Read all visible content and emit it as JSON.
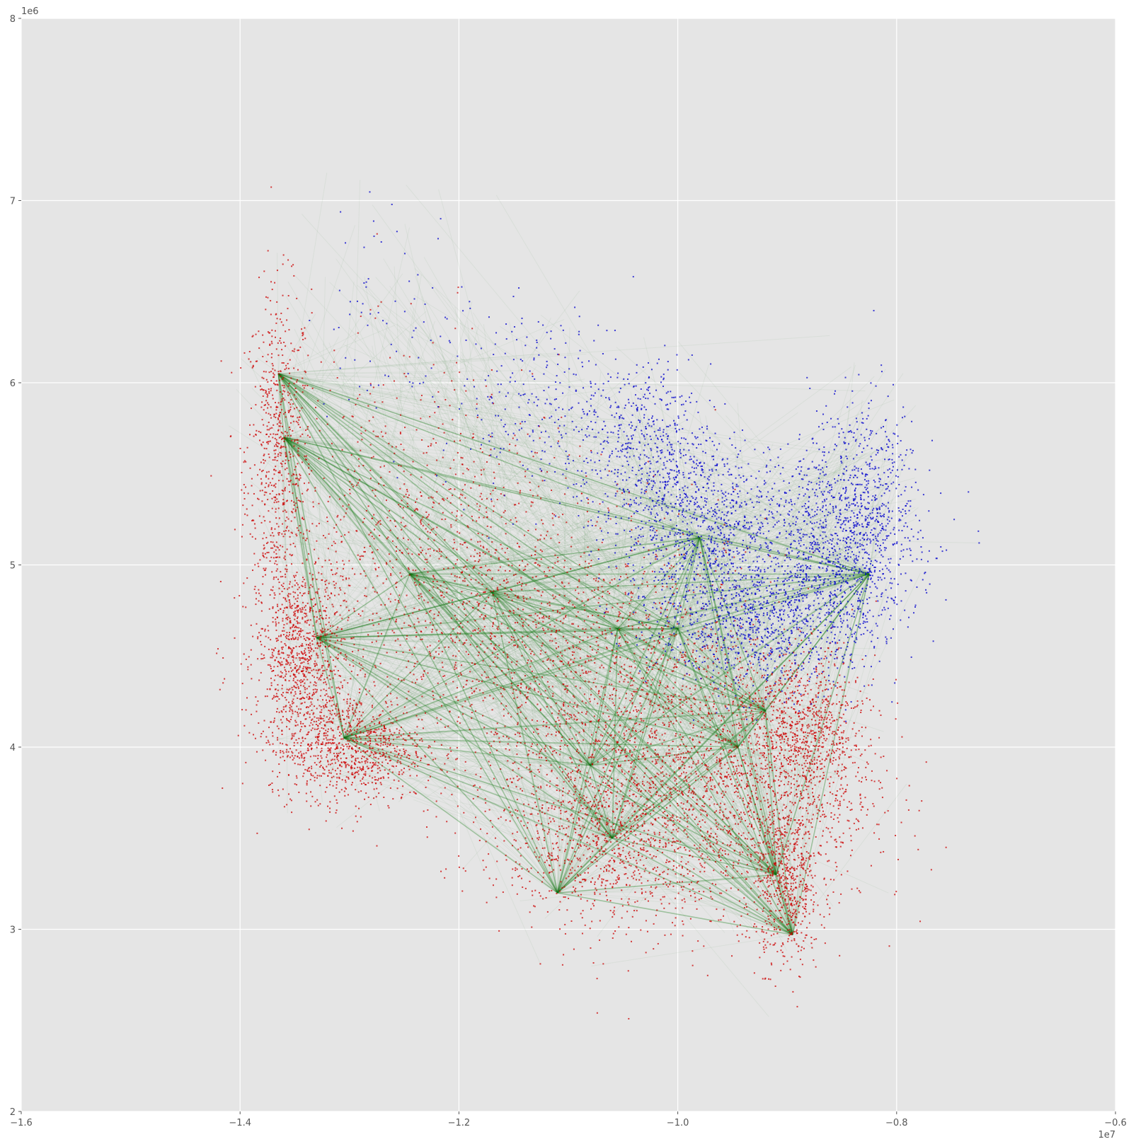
{
  "chart_data": {
    "type": "scatter",
    "title": "",
    "xlabel": "",
    "ylabel": "",
    "xlim": [
      -16000000,
      -6000000
    ],
    "ylim": [
      2000000,
      8000000
    ],
    "x_offset_text": "1e7",
    "y_offset_text": "1e6",
    "x_ticks": [
      -16000000,
      -14000000,
      -12000000,
      -10000000,
      -8000000,
      -6000000
    ],
    "x_tick_labels": [
      "−1.6",
      "−1.4",
      "−1.2",
      "−1.0",
      "−0.8",
      "−0.6"
    ],
    "y_ticks": [
      2000000,
      3000000,
      4000000,
      5000000,
      6000000,
      7000000,
      8000000
    ],
    "y_tick_labels": [
      "2",
      "3",
      "4",
      "5",
      "6",
      "7",
      "8"
    ],
    "grid": true,
    "style": "ggplot",
    "colors": {
      "background": "#e5e5e5",
      "grid": "#ffffff",
      "red_points": "#cc0000",
      "blue_points": "#0000cc",
      "edges": "#1a7f1a"
    },
    "series": [
      {
        "color": "#cc0000",
        "kind": "points",
        "clusters": [
          {
            "x": -13650000,
            "y": 5600000,
            "sx": 150000,
            "sy": 450000,
            "n": 700
          },
          {
            "x": -13450000,
            "y": 4500000,
            "sx": 200000,
            "sy": 250000,
            "n": 900
          },
          {
            "x": -13000000,
            "y": 4000000,
            "sx": 350000,
            "sy": 150000,
            "n": 900
          },
          {
            "x": -12500000,
            "y": 5000000,
            "sx": 600000,
            "sy": 550000,
            "n": 900
          },
          {
            "x": -11500000,
            "y": 4700000,
            "sx": 400000,
            "sy": 500000,
            "n": 500
          },
          {
            "x": -10500000,
            "y": 4200000,
            "sx": 700000,
            "sy": 500000,
            "n": 1600
          },
          {
            "x": -10600000,
            "y": 3500000,
            "sx": 500000,
            "sy": 250000,
            "n": 900
          },
          {
            "x": -9200000,
            "y": 3800000,
            "sx": 500000,
            "sy": 350000,
            "n": 1400
          },
          {
            "x": -9000000,
            "y": 3200000,
            "sx": 150000,
            "sy": 200000,
            "n": 500
          },
          {
            "x": -8800000,
            "y": 4100000,
            "sx": 250000,
            "sy": 200000,
            "n": 600
          }
        ]
      },
      {
        "color": "#0000cc",
        "kind": "points",
        "clusters": [
          {
            "x": -9700000,
            "y": 5200000,
            "sx": 400000,
            "sy": 250000,
            "n": 900
          },
          {
            "x": -8500000,
            "y": 5100000,
            "sx": 350000,
            "sy": 250000,
            "n": 1000
          },
          {
            "x": -9200000,
            "y": 4700000,
            "sx": 500000,
            "sy": 200000,
            "n": 1000
          },
          {
            "x": -10300000,
            "y": 5600000,
            "sx": 300000,
            "sy": 250000,
            "n": 500
          },
          {
            "x": -11200000,
            "y": 5900000,
            "sx": 500000,
            "sy": 250000,
            "n": 300
          },
          {
            "x": -8300000,
            "y": 5500000,
            "sx": 250000,
            "sy": 250000,
            "n": 300
          },
          {
            "x": -12600000,
            "y": 6400000,
            "sx": 400000,
            "sy": 300000,
            "n": 70
          }
        ]
      },
      {
        "color": "#1a7f1a",
        "kind": "edges",
        "hubs": [
          [
            -13650000,
            6050000
          ],
          [
            -13600000,
            5700000
          ],
          [
            -13300000,
            4600000
          ],
          [
            -13050000,
            4050000
          ],
          [
            -12450000,
            4950000
          ],
          [
            -11700000,
            4850000
          ],
          [
            -10800000,
            3900000
          ],
          [
            -10600000,
            3500000
          ],
          [
            -11100000,
            3200000
          ],
          [
            -9800000,
            5150000
          ],
          [
            -9450000,
            4000000
          ],
          [
            -9100000,
            3300000
          ],
          [
            -8950000,
            2970000
          ],
          [
            -8250000,
            4950000
          ],
          [
            -10550000,
            4650000
          ],
          [
            -9200000,
            4200000
          ],
          [
            -10000000,
            4650000
          ]
        ]
      }
    ]
  }
}
